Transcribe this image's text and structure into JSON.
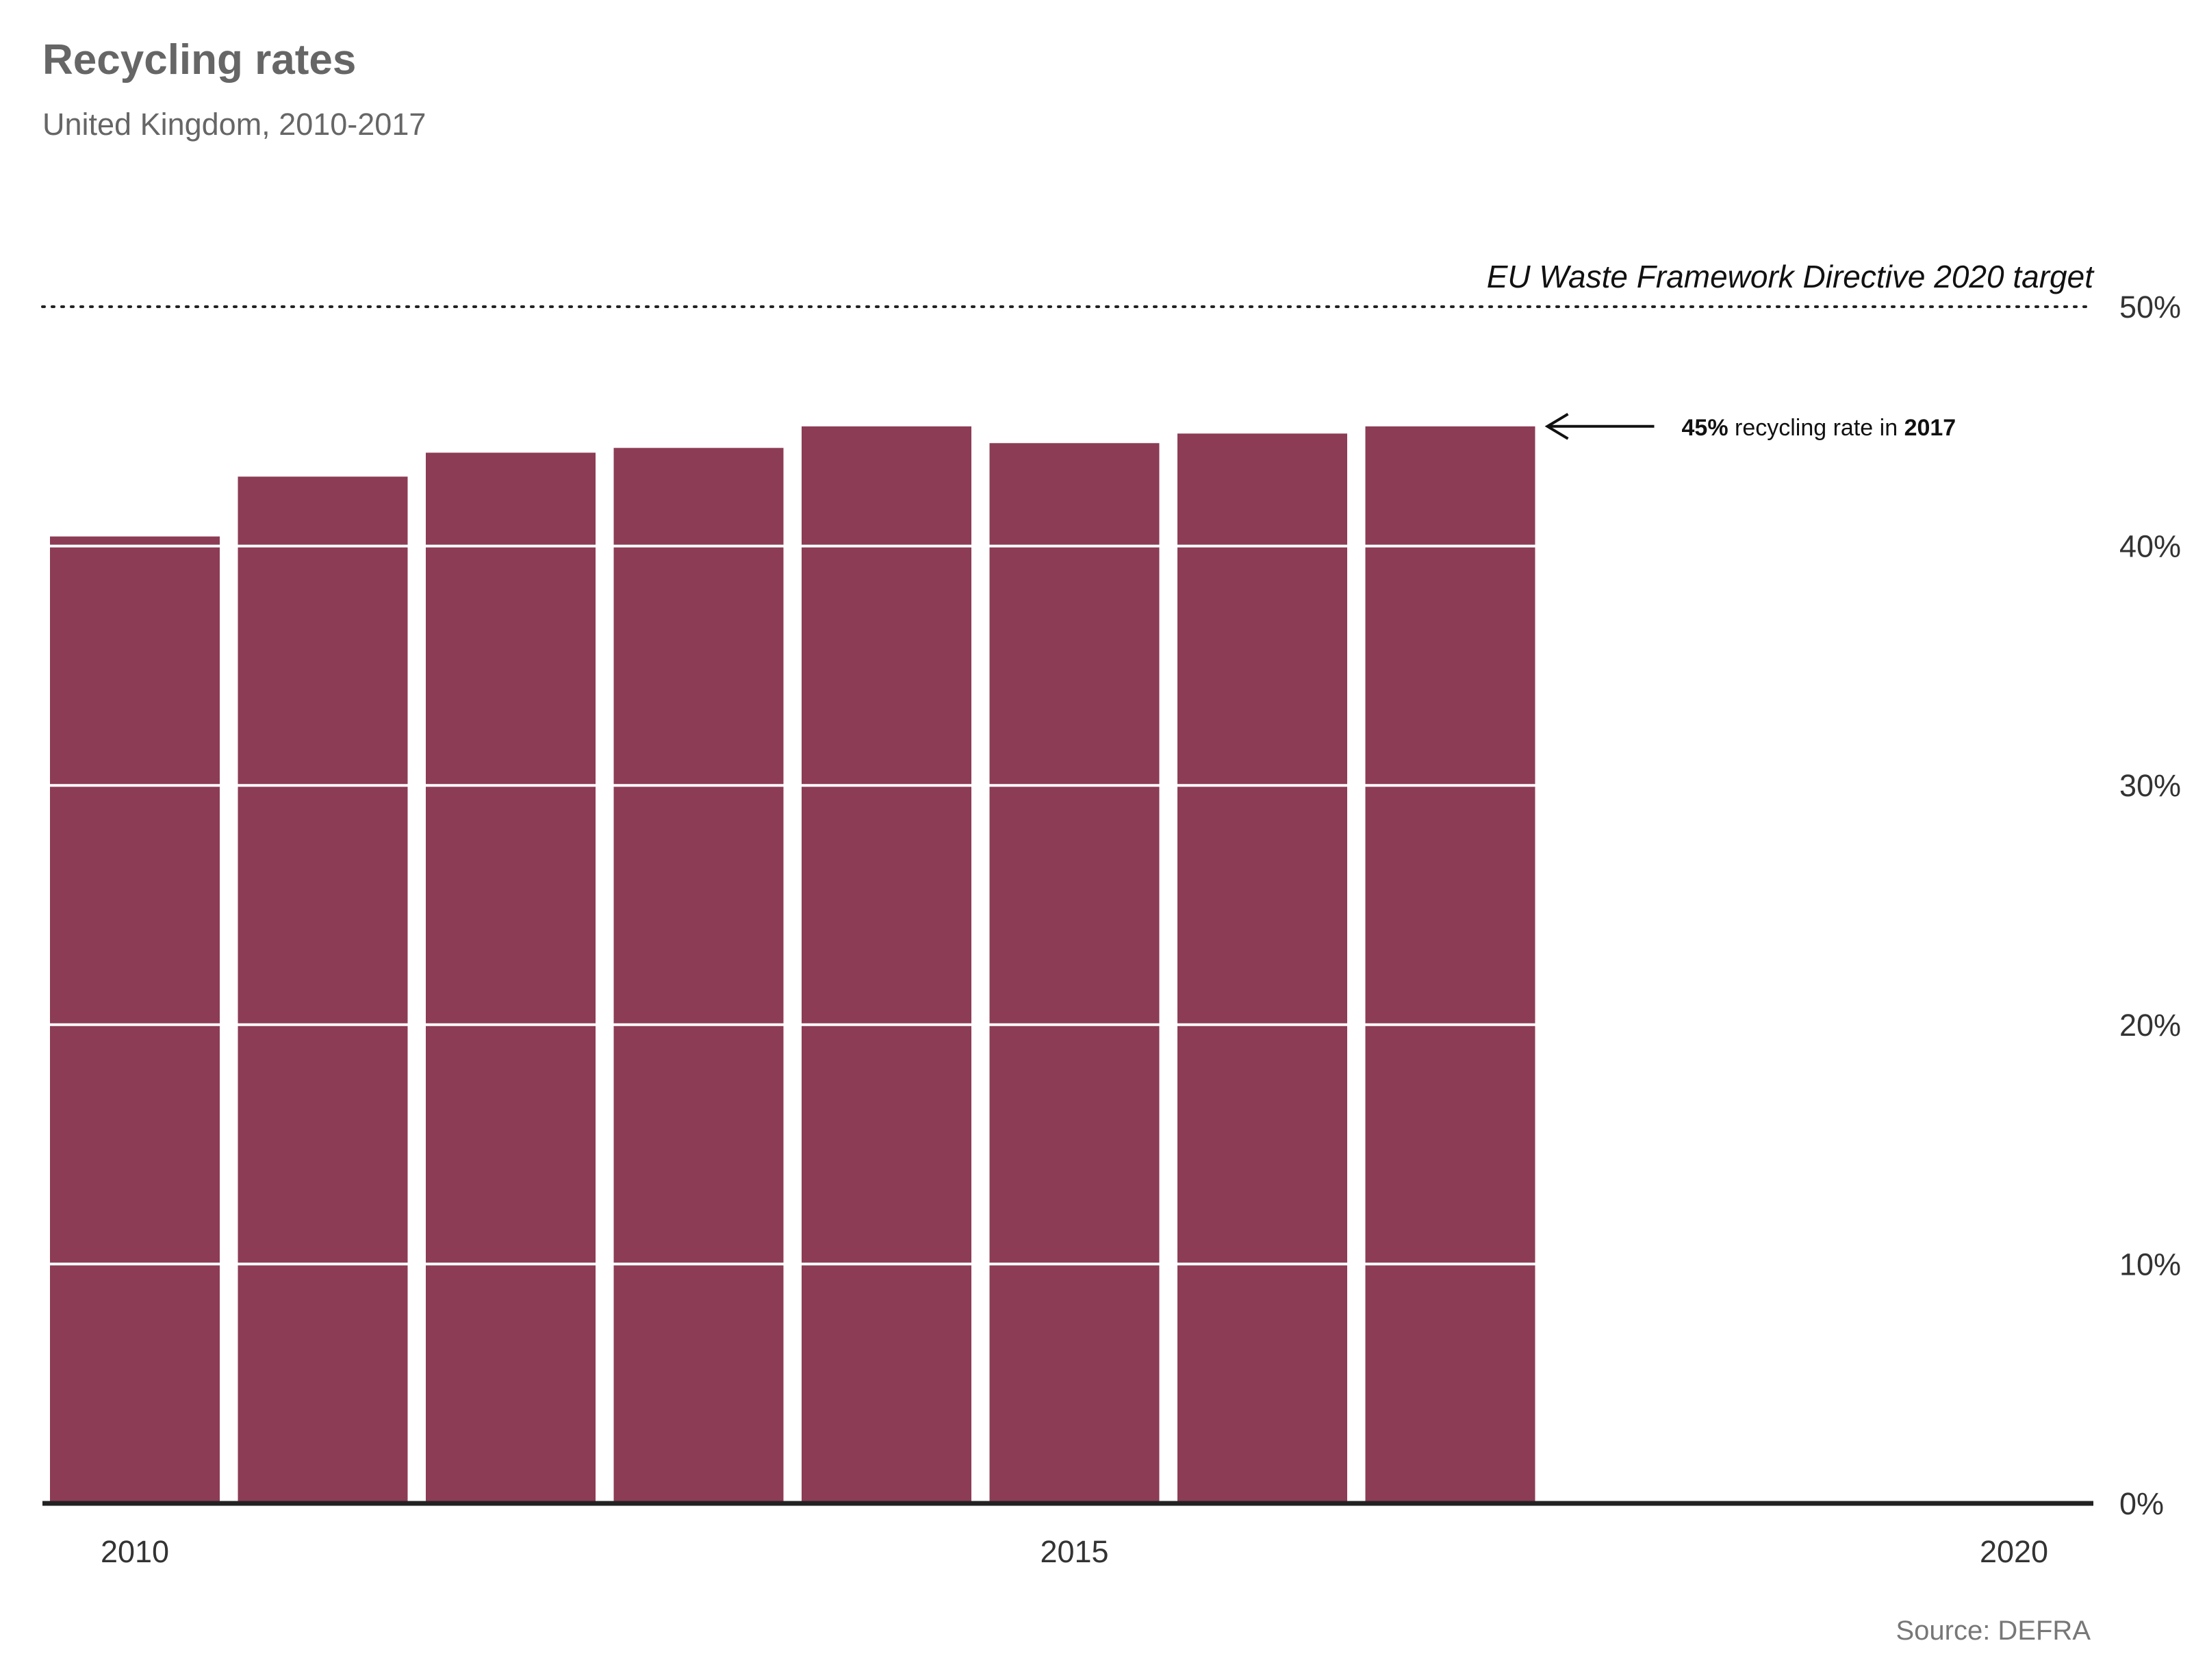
{
  "header": {
    "title": "Recycling rates",
    "subtitle": "United Kingdom, 2010-2017"
  },
  "footer": {
    "source": "Source: DEFRA"
  },
  "colors": {
    "bar": "#8c3c55",
    "axis": "#222222",
    "text": "#333333"
  },
  "chart_data": {
    "type": "bar",
    "x": [
      2010,
      2011,
      2012,
      2013,
      2014,
      2015,
      2016,
      2017
    ],
    "values": [
      40.4,
      42.9,
      43.9,
      44.1,
      45.0,
      44.3,
      44.7,
      45.0
    ],
    "unit": "%",
    "xlim": [
      2010,
      2020
    ],
    "ylim": [
      0,
      50
    ],
    "x_ticks": [
      2010,
      2015,
      2020
    ],
    "x_tick_labels": [
      "2010",
      "2015",
      "2020"
    ],
    "y_ticks": [
      0,
      10,
      20,
      30,
      40,
      50
    ],
    "y_tick_labels": [
      "0%",
      "10%",
      "20%",
      "30%",
      "40%",
      "50%"
    ],
    "y_axis_side": "right",
    "grid": "white lines over bars",
    "reference_line": {
      "value": 50,
      "label": "EU Waste Framework Directive 2020 target",
      "style": "dotted"
    },
    "annotation": {
      "year": 2017,
      "value": 45,
      "value_text": "45%",
      "middle_text": " recycling rate in ",
      "year_text": "2017"
    }
  }
}
